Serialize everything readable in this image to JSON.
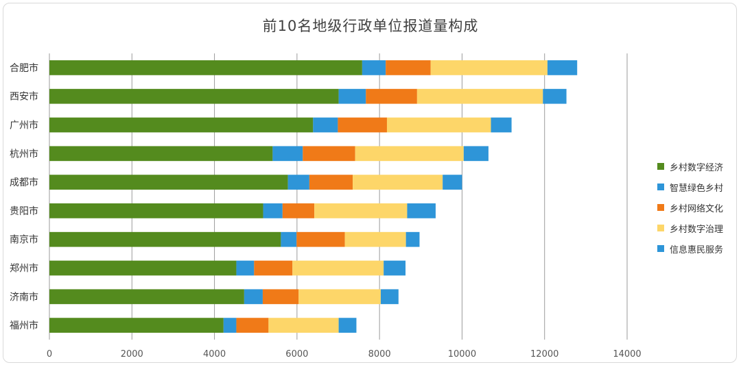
{
  "chart_data": {
    "type": "bar",
    "orientation": "horizontal",
    "stacked": true,
    "title": "前10名地级行政单位报道量构成",
    "categories": [
      "合肥市",
      "西安市",
      "广州市",
      "杭州市",
      "成都市",
      "贵阳市",
      "南京市",
      "郑州市",
      "济南市",
      "福州市"
    ],
    "series": [
      {
        "name": "乡村数字经济",
        "color": "#548b1e",
        "values": [
          7580,
          7010,
          6390,
          5410,
          5780,
          5180,
          5610,
          4530,
          4720,
          4220
        ]
      },
      {
        "name": "智慧绿色乡村",
        "color": "#2e95d8",
        "values": [
          570,
          660,
          600,
          730,
          520,
          470,
          380,
          430,
          450,
          310
        ]
      },
      {
        "name": "乡村网络文化",
        "color": "#f07a18",
        "values": [
          1090,
          1240,
          1190,
          1270,
          1050,
          770,
          1170,
          930,
          870,
          780
        ]
      },
      {
        "name": "乡村数字治理",
        "color": "#fdd669",
        "values": [
          2830,
          3050,
          2520,
          2630,
          2180,
          2250,
          1480,
          2210,
          1990,
          1700
        ]
      },
      {
        "name": "信息惠民服务",
        "color": "#2e95d8",
        "values": [
          720,
          570,
          500,
          600,
          470,
          690,
          330,
          530,
          430,
          430
        ]
      }
    ],
    "xlim": [
      0,
      14000
    ],
    "xticks": [
      "0",
      "2000",
      "4000",
      "6000",
      "8000",
      "10000",
      "12000",
      "14000"
    ],
    "grid": true,
    "legend_position": "right"
  }
}
